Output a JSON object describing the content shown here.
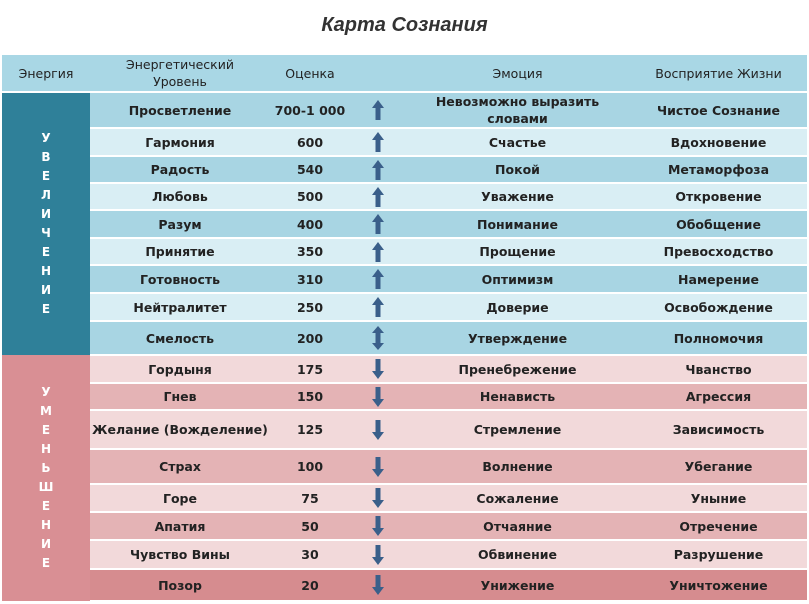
{
  "title": "Карта Сознания",
  "headers": [
    "Энергия",
    "Энергетический Уровень",
    "Оценка",
    "Эмоция",
    "Восприятие Жизни"
  ],
  "increase_label": "УВЕЛИЧЕНИЕ",
  "decrease_label": "УМЕНЬШЕНИЕ",
  "colors": {
    "increase": "#2f8099",
    "decrease": "#d98f94",
    "arrow": "#3a5f8a"
  },
  "rows": [
    {
      "level": "Просветление",
      "score": "700-1 000",
      "dir": "up",
      "emotion": "Невозможно выразить словами",
      "perception": "Чистое Сознание"
    },
    {
      "level": "Гармония",
      "score": "600",
      "dir": "up",
      "emotion": "Счастье",
      "perception": "Вдохновение"
    },
    {
      "level": "Радость",
      "score": "540",
      "dir": "up",
      "emotion": "Покой",
      "perception": "Метаморфоза"
    },
    {
      "level": "Любовь",
      "score": "500",
      "dir": "up",
      "emotion": "Уважение",
      "perception": "Откровение"
    },
    {
      "level": "Разум",
      "score": "400",
      "dir": "up",
      "emotion": "Понимание",
      "perception": "Обобщение"
    },
    {
      "level": "Принятие",
      "score": "350",
      "dir": "up",
      "emotion": "Прощение",
      "perception": "Превосходство"
    },
    {
      "level": "Готовность",
      "score": "310",
      "dir": "up",
      "emotion": "Оптимизм",
      "perception": "Намерение"
    },
    {
      "level": "Нейтралитет",
      "score": "250",
      "dir": "up",
      "emotion": "Доверие",
      "perception": "Освобождение"
    },
    {
      "level": "Смелость",
      "score": "200",
      "dir": "both",
      "emotion": "Утверждение",
      "perception": "Полномочия"
    },
    {
      "level": "Гордыня",
      "score": "175",
      "dir": "down",
      "emotion": "Пренебрежение",
      "perception": "Чванство"
    },
    {
      "level": "Гнев",
      "score": "150",
      "dir": "down",
      "emotion": "Ненависть",
      "perception": "Агрессия"
    },
    {
      "level": "Желание (Вожделение)",
      "score": "125",
      "dir": "down",
      "emotion": "Стремление",
      "perception": "Зависимость"
    },
    {
      "level": "Страх",
      "score": "100",
      "dir": "down",
      "emotion": "Волнение",
      "perception": "Убегание"
    },
    {
      "level": "Горе",
      "score": "75",
      "dir": "down",
      "emotion": "Сожаление",
      "perception": "Уныние"
    },
    {
      "level": "Апатия",
      "score": "50",
      "dir": "down",
      "emotion": "Отчаяние",
      "perception": "Отречение"
    },
    {
      "level": "Чувство Вины",
      "score": "30",
      "dir": "down",
      "emotion": "Обвинение",
      "perception": "Разрушение"
    },
    {
      "level": "Позор",
      "score": "20",
      "dir": "down",
      "emotion": "Унижение",
      "perception": "Уничтожение"
    }
  ]
}
